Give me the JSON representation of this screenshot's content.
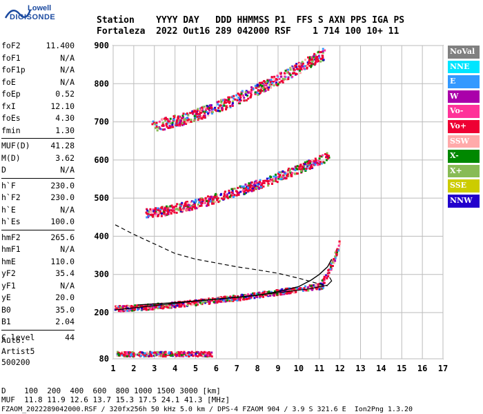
{
  "logo": {
    "line1": "Lowell",
    "line2": "DIGISONDE"
  },
  "header": {
    "row1": "Station    YYYY DAY   DDD HHMMSS P1  FFS S AXN PPS IGA PS",
    "row2": "Fortaleza  2022 Out16 289 042000 RSF    1 714 100 10+ 11"
  },
  "params": [
    {
      "label": "foF2",
      "value": "11.400"
    },
    {
      "label": "foF1",
      "value": "N/A"
    },
    {
      "label": "foF1p",
      "value": "N/A"
    },
    {
      "label": "foE",
      "value": "N/A"
    },
    {
      "label": "foEp",
      "value": "0.52"
    },
    {
      "label": "fxI",
      "value": "12.10"
    },
    {
      "label": "foEs",
      "value": "4.30"
    },
    {
      "label": "fmin",
      "value": "1.30"
    },
    {
      "sep": true
    },
    {
      "label": "MUF(D)",
      "value": "41.28"
    },
    {
      "label": "M(D)",
      "value": "3.62"
    },
    {
      "label": "D",
      "value": "N/A"
    },
    {
      "sep": true
    },
    {
      "label": "h`F",
      "value": "230.0"
    },
    {
      "label": "h`F2",
      "value": "230.0"
    },
    {
      "label": "h`E",
      "value": "N/A"
    },
    {
      "label": "h`Es",
      "value": "100.0"
    },
    {
      "sep": true
    },
    {
      "label": "hmF2",
      "value": "265.6"
    },
    {
      "label": "hmF1",
      "value": "N/A"
    },
    {
      "label": "hmE",
      "value": "110.0"
    },
    {
      "label": "yF2",
      "value": "35.4"
    },
    {
      "label": "yF1",
      "value": "N/A"
    },
    {
      "label": "yE",
      "value": "20.0"
    },
    {
      "label": "B0",
      "value": "35.0"
    },
    {
      "label": "B1",
      "value": "2.04"
    },
    {
      "sep": true
    },
    {
      "label": "C-level",
      "value": "44"
    }
  ],
  "auto": {
    "line1": "Auto:",
    "line2": "Artist5",
    "line3": "500200"
  },
  "legend": [
    {
      "label": "NoVal",
      "color": "#808080"
    },
    {
      "label": "NNE",
      "color": "#00e5ff"
    },
    {
      "label": "E",
      "color": "#3399ff"
    },
    {
      "label": "W",
      "color": "#aa00aa"
    },
    {
      "label": "Vo-",
      "color": "#ff3399"
    },
    {
      "label": "Vo+",
      "color": "#ee0033"
    },
    {
      "label": "SSW",
      "color": "#ffaaaa"
    },
    {
      "label": "X-",
      "color": "#008800"
    },
    {
      "label": "X+",
      "color": "#88bb55"
    },
    {
      "label": "SSE",
      "color": "#cccc00"
    },
    {
      "label": "NNW",
      "color": "#2200cc"
    }
  ],
  "footer": {
    "row1": "D    100  200  400  600  800 1000 1500 3000 [km]",
    "row2": "MUF  11.8 11.9 12.6 13.7 15.3 17.5 24.1 41.3 [MHz]",
    "row3": "FZAOM_2022289042000.RSF / 320fx256h 50 kHz 5.0 km / DPS-4 FZAOM 904 / 3.9 S 321.6 E  Ion2Png 1.3.20"
  },
  "chart_data": {
    "type": "scatter",
    "xlabel": "",
    "ylabel": "",
    "xlim": [
      1,
      17
    ],
    "ylim": [
      80,
      900
    ],
    "x_ticks": [
      1,
      2,
      3,
      4,
      5,
      6,
      7,
      8,
      9,
      10,
      11,
      12,
      13,
      14,
      15,
      16,
      17
    ],
    "y_ticks": [
      80,
      200,
      300,
      400,
      500,
      600,
      700,
      800,
      900
    ],
    "grid": true,
    "traces": [
      {
        "name": "E-layer echoes",
        "x0": 1.2,
        "x1": 5.8,
        "h0": 92,
        "h1": 92,
        "band": 12
      },
      {
        "name": "F trace",
        "x0": 1.1,
        "x1": 11.2,
        "h0": 210,
        "h1": 270,
        "band": 14
      },
      {
        "name": "F cusp",
        "x0": 11.0,
        "x1": 12.0,
        "h0": 270,
        "h1": 380,
        "band": 20
      },
      {
        "name": "2F trace",
        "x0": 2.6,
        "x1": 11.5,
        "h0": 460,
        "h1": 610,
        "band": 24
      },
      {
        "name": "3F trace",
        "x0": 2.9,
        "x1": 11.3,
        "h0": 690,
        "h1": 880,
        "band": 30
      }
    ],
    "profile_dashed": [
      [
        1.1,
        430
      ],
      [
        2,
        405
      ],
      [
        3,
        380
      ],
      [
        4,
        355
      ],
      [
        5,
        340
      ],
      [
        6,
        330
      ],
      [
        7,
        320
      ],
      [
        8,
        312
      ],
      [
        9,
        303
      ],
      [
        10,
        290
      ],
      [
        11,
        275
      ],
      [
        11.4,
        270
      ]
    ],
    "profile_solid": [
      [
        1.1,
        207
      ],
      [
        3,
        218
      ],
      [
        5,
        230
      ],
      [
        7,
        240
      ],
      [
        9,
        252
      ],
      [
        10.5,
        262
      ],
      [
        11.4,
        272
      ],
      [
        11.6,
        283
      ],
      [
        11.5,
        292
      ]
    ],
    "fit_curve": [
      [
        2.2,
        220
      ],
      [
        4,
        226
      ],
      [
        6,
        235
      ],
      [
        8,
        245
      ],
      [
        9,
        255
      ],
      [
        10,
        268
      ],
      [
        10.6,
        285
      ],
      [
        11,
        300
      ],
      [
        11.4,
        320
      ],
      [
        11.6,
        340
      ]
    ]
  }
}
